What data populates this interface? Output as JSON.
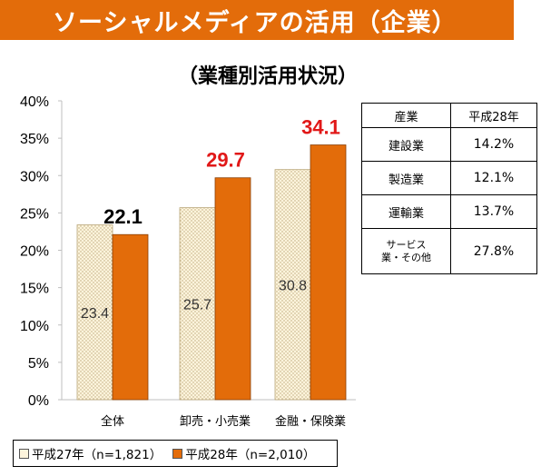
{
  "banner": {
    "title": "ソーシャルメディアの活用（企業）"
  },
  "chart_data": {
    "type": "bar",
    "title": "（業種別活用状況）",
    "categories": [
      "全体",
      "卸売・小売業",
      "金融・保険業"
    ],
    "series": [
      {
        "name": "平成27年（n=1,821）",
        "values": [
          23.4,
          25.7,
          30.8
        ],
        "data_labels": [
          "23.4",
          "25.7",
          "30.8"
        ],
        "color": "#fdf4dc",
        "pattern": "dots"
      },
      {
        "name": "平成28年（n=2,010）",
        "values": [
          22.1,
          29.7,
          34.1
        ],
        "data_labels": [
          "22.1",
          "29.7",
          "34.1"
        ],
        "color": "#e36c0a"
      }
    ],
    "data_label_colors": [
      "#000000",
      "#e11818",
      "#e11818"
    ],
    "ylim": [
      0,
      40
    ],
    "yticks": [
      0,
      5,
      10,
      15,
      20,
      25,
      30,
      35,
      40
    ],
    "ytick_labels": [
      "0%",
      "5%",
      "10%",
      "15%",
      "20%",
      "25%",
      "30%",
      "35%",
      "40%"
    ],
    "xlabel": "",
    "ylabel": "",
    "grid": false,
    "legend_position": "bottom"
  },
  "side_table": {
    "headers": [
      "産業",
      "平成28年"
    ],
    "rows": [
      [
        "建設業",
        "14.2%"
      ],
      [
        "製造業",
        "12.1%"
      ],
      [
        "運輸業",
        "13.7%"
      ],
      [
        "サービス業・その他",
        "27.8%"
      ]
    ],
    "row4_line1": "サービス",
    "row4_line2": "業・その他"
  }
}
